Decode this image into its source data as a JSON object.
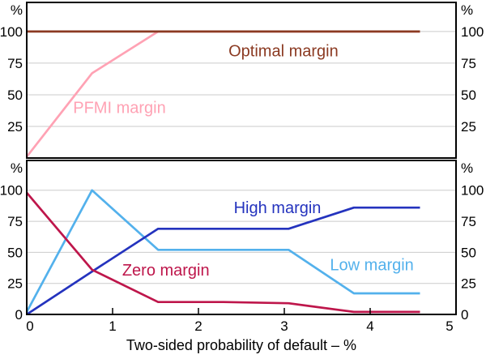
{
  "figure": {
    "background": "#FFFFFF",
    "axis_color": "#000000",
    "grid_color": "#CBCBCB",
    "tick_label_color": "#000000",
    "xlabel": "Two-sided probability of default – %",
    "unit": "%"
  },
  "chart_data": [
    {
      "id": "top-panel",
      "type": "line",
      "legend": "inline-labels",
      "grid": true,
      "x": [
        0,
        0.76,
        1.53,
        2.29,
        3.05,
        3.81,
        4.58
      ],
      "xlim": [
        0,
        5
      ],
      "ylim": [
        0,
        123
      ],
      "grid_yticks": [
        25,
        50,
        75,
        100
      ],
      "ytick_labels": [
        100,
        75,
        50,
        25
      ],
      "series": [
        {
          "name": "PFMI margin",
          "color": "#FFA2B4",
          "values": [
            1,
            67,
            100,
            100,
            100,
            100,
            100
          ],
          "label": {
            "text": "PFMI margin",
            "x": 1.08,
            "y": 40
          }
        },
        {
          "name": "Optimal margin",
          "color": "#8B3A22",
          "values": [
            100,
            100,
            100,
            100,
            100,
            100,
            100
          ],
          "label": {
            "text": "Optimal margin",
            "x": 2.99,
            "y": 85
          }
        }
      ]
    },
    {
      "id": "bottom-panel",
      "type": "line",
      "legend": "inline-labels",
      "grid": true,
      "x": [
        0,
        0.76,
        1.53,
        2.29,
        3.05,
        3.81,
        4.58
      ],
      "xlim": [
        0,
        5
      ],
      "ylim": [
        0,
        124
      ],
      "grid_yticks": [
        25,
        50,
        75,
        100
      ],
      "ytick_labels": [
        100,
        75,
        50,
        25,
        0
      ],
      "xticks": [
        0,
        1,
        2,
        3,
        4,
        5
      ],
      "xtick_labels": [
        "0",
        "1",
        "2",
        "3",
        "4",
        "5"
      ],
      "series": [
        {
          "name": "Low margin",
          "color": "#53B1EC",
          "values": [
            2,
            100,
            52,
            52,
            52,
            17,
            17
          ],
          "label": {
            "text": "Low margin",
            "x": 4.02,
            "y": 40
          }
        },
        {
          "name": "High margin",
          "color": "#2433BE",
          "values": [
            0,
            34.5,
            69,
            69,
            69,
            86,
            86
          ],
          "label": {
            "text": "High margin",
            "x": 2.92,
            "y": 86
          }
        },
        {
          "name": "Zero margin",
          "color": "#BE164B",
          "values": [
            98,
            36,
            10,
            10,
            9,
            2,
            2
          ],
          "label": {
            "text": "Zero margin",
            "x": 1.62,
            "y": 36
          }
        }
      ]
    }
  ]
}
